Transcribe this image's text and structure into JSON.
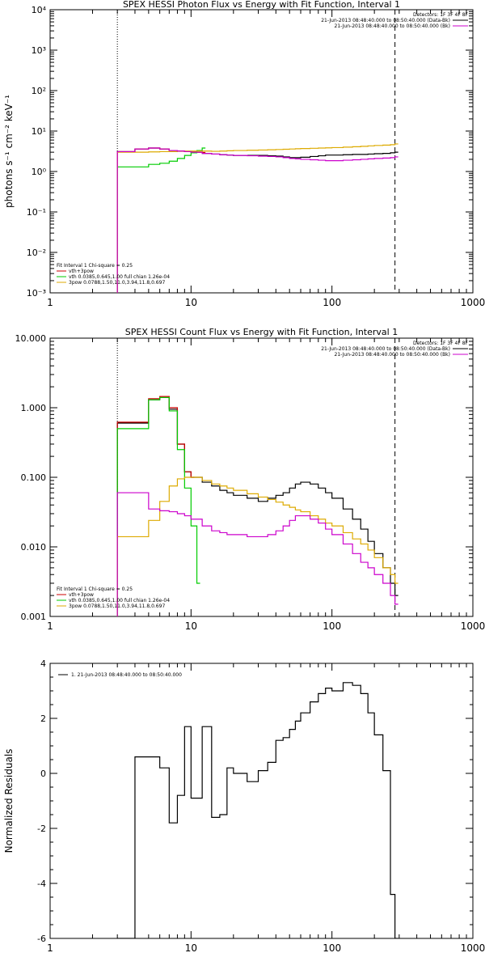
{
  "chart_data": [
    {
      "type": "line",
      "title": "SPEX HESSI Photon Flux vs Energy with Fit Function, Interval 1",
      "ylabel": "photons s⁻¹ cm⁻² keV⁻¹",
      "xscale": "log",
      "yscale": "log",
      "xlim": [
        1,
        1000
      ],
      "ylim": [
        0.001,
        10000
      ],
      "xticks": [
        1,
        10,
        100,
        1000
      ],
      "xtick_labels": [
        "1",
        "10",
        "100",
        "1000"
      ],
      "yticks": [
        0.001,
        0.01,
        0.1,
        1,
        10,
        100,
        1000,
        10000
      ],
      "ytick_labels": [
        "10⁻³",
        "10⁻²",
        "10⁻¹",
        "10⁰",
        "10¹",
        "10²",
        "10³",
        "10⁴"
      ],
      "vlines": [
        {
          "x": 3,
          "style": "dotted"
        },
        {
          "x": 280,
          "style": "dashed"
        }
      ],
      "legend_top": {
        "placement": "top-right",
        "lines": [
          {
            "text": "Detectors: 1F 3F 4F 8F",
            "color": "#000000"
          },
          {
            "text": "21-Jun-2013 08:48:40.000 to 08:50:40.000 (Data-Bk)",
            "color": "#000000"
          },
          {
            "text": "21-Jun-2013 08:48:40.000 to 08:50:40.000 (Bk)",
            "color": "#cc00cc"
          }
        ]
      },
      "legend_bottom": {
        "placement": "bottom-left",
        "lines": [
          {
            "text": "Fit Interval 1    Chi-square = 0.25",
            "color": "#000000"
          },
          {
            "text": "vth+3pow",
            "color": "#cc0000"
          },
          {
            "text": "vth 0.0385,0.645,1.00  full chian 1.26e-04",
            "color": "#00cc00"
          },
          {
            "text": "3pow 0.0788,1.50,11.0,3.94,11.8,0.697",
            "color": "#ddaa00"
          }
        ]
      },
      "series": [
        {
          "color": "#000000",
          "x": [
            3,
            4,
            5,
            6,
            7,
            8,
            9,
            10,
            12,
            14,
            16,
            18,
            20,
            25,
            30,
            35,
            40,
            45,
            50,
            55,
            60,
            70,
            80,
            90,
            100,
            120,
            140,
            160,
            180,
            200,
            230,
            260,
            280
          ],
          "y": [
            3.1,
            3.6,
            3.8,
            3.6,
            3.3,
            3.2,
            3.1,
            3.0,
            2.8,
            2.7,
            2.6,
            2.55,
            2.5,
            2.5,
            2.5,
            2.45,
            2.4,
            2.3,
            2.2,
            2.2,
            2.25,
            2.35,
            2.45,
            2.55,
            2.55,
            2.6,
            2.65,
            2.65,
            2.7,
            2.75,
            2.8,
            2.9,
            3.0
          ]
        },
        {
          "color": "#cc0000",
          "x": [
            3,
            4,
            5,
            6,
            7,
            8,
            9,
            10,
            11,
            12
          ],
          "y": [
            3.1,
            3.6,
            3.8,
            3.6,
            3.3,
            3.2,
            3.1,
            3.05,
            3.0,
            2.95
          ]
        },
        {
          "color": "#00cc00",
          "x": [
            3,
            4,
            5,
            6,
            7,
            8,
            9,
            10,
            11,
            12
          ],
          "y": [
            1.3,
            1.3,
            1.5,
            1.6,
            1.8,
            2.1,
            2.5,
            2.9,
            3.3,
            3.8
          ]
        },
        {
          "color": "#ddaa00",
          "x": [
            3,
            4,
            5,
            6,
            7,
            8,
            9,
            10,
            12,
            14,
            16,
            18,
            20,
            25,
            30,
            35,
            40,
            45,
            50,
            55,
            60,
            70,
            80,
            90,
            100,
            120,
            140,
            160,
            180,
            200,
            230,
            260,
            280
          ],
          "y": [
            3.0,
            3.0,
            3.05,
            3.1,
            3.1,
            3.15,
            3.2,
            3.2,
            3.2,
            3.15,
            3.2,
            3.25,
            3.3,
            3.35,
            3.4,
            3.45,
            3.5,
            3.55,
            3.6,
            3.65,
            3.7,
            3.75,
            3.8,
            3.85,
            3.9,
            4.0,
            4.1,
            4.2,
            4.3,
            4.4,
            4.5,
            4.6,
            4.8
          ]
        },
        {
          "color": "#cc00cc",
          "x": [
            3,
            4,
            5,
            6,
            7,
            8,
            9,
            10,
            12,
            14,
            16,
            18,
            20,
            25,
            30,
            35,
            40,
            45,
            50,
            55,
            60,
            70,
            80,
            90,
            100,
            120,
            140,
            160,
            180,
            200,
            230,
            260,
            280
          ],
          "y": [
            3.1,
            3.6,
            3.8,
            3.6,
            3.3,
            3.2,
            3.1,
            3.0,
            2.8,
            2.7,
            2.6,
            2.55,
            2.5,
            2.45,
            2.4,
            2.35,
            2.3,
            2.2,
            2.1,
            2.05,
            2.0,
            1.95,
            1.9,
            1.85,
            1.85,
            1.9,
            1.95,
            2.0,
            2.05,
            2.1,
            2.15,
            2.2,
            2.3
          ]
        }
      ]
    },
    {
      "type": "line",
      "title": "SPEX HESSI Count Flux vs Energy with Fit Function, Interval 1",
      "ylabel": "",
      "xscale": "log",
      "yscale": "log",
      "xlim": [
        1,
        1000
      ],
      "ylim": [
        0.001,
        10
      ],
      "xticks": [
        1,
        10,
        100,
        1000
      ],
      "xtick_labels": [
        "1",
        "10",
        "100",
        "1000"
      ],
      "yticks": [
        0.001,
        0.01,
        0.1,
        1,
        10
      ],
      "ytick_labels": [
        "0.001",
        "0.010",
        "0.100",
        "1.000",
        "10.000"
      ],
      "vlines": [
        {
          "x": 3,
          "style": "dotted"
        },
        {
          "x": 280,
          "style": "dashed"
        }
      ],
      "legend_top": {
        "placement": "top-right",
        "lines": [
          {
            "text": "Detectors: 1F 3F 4F 8F",
            "color": "#000000"
          },
          {
            "text": "21-Jun-2013 08:48:40.000 to 08:50:40.000 (Data-Bk)",
            "color": "#000000"
          },
          {
            "text": "21-Jun-2013 08:48:40.000 to 08:50:40.000 (Bk)",
            "color": "#cc00cc"
          }
        ]
      },
      "legend_bottom": {
        "placement": "bottom-left",
        "lines": [
          {
            "text": "Fit Interval 1    Chi-square = 0.25",
            "color": "#000000"
          },
          {
            "text": "vth+3pow",
            "color": "#cc0000"
          },
          {
            "text": "vth 0.0385,0.645,1.00  full chian 1.26e-04",
            "color": "#00cc00"
          },
          {
            "text": "3pow 0.0788,1.50,11.0,3.94,11.8,0.697",
            "color": "#ddaa00"
          }
        ]
      },
      "series": [
        {
          "color": "#000000",
          "x": [
            3,
            4,
            5,
            6,
            7,
            8,
            9,
            10,
            12,
            14,
            16,
            18,
            20,
            25,
            30,
            35,
            40,
            45,
            50,
            55,
            60,
            70,
            80,
            90,
            100,
            120,
            140,
            160,
            180,
            200,
            230,
            260,
            280
          ],
          "y": [
            0.6,
            0.6,
            1.3,
            1.4,
            0.95,
            0.3,
            0.12,
            0.1,
            0.085,
            0.075,
            0.065,
            0.06,
            0.055,
            0.05,
            0.045,
            0.05,
            0.055,
            0.06,
            0.07,
            0.08,
            0.085,
            0.08,
            0.07,
            0.06,
            0.05,
            0.035,
            0.025,
            0.018,
            0.012,
            0.008,
            0.005,
            0.003,
            0.002
          ]
        },
        {
          "color": "#cc0000",
          "x": [
            3,
            4,
            5,
            6,
            7,
            8,
            9,
            10
          ],
          "y": [
            0.62,
            0.62,
            1.35,
            1.45,
            1.0,
            0.3,
            0.12,
            0.1
          ]
        },
        {
          "color": "#00cc00",
          "x": [
            3,
            4,
            5,
            6,
            7,
            8,
            9,
            10,
            11
          ],
          "y": [
            0.5,
            0.5,
            1.3,
            1.4,
            0.9,
            0.25,
            0.07,
            0.02,
            0.003
          ]
        },
        {
          "color": "#ddaa00",
          "x": [
            3,
            4,
            5,
            6,
            7,
            8,
            9,
            10,
            12,
            14,
            16,
            18,
            20,
            25,
            30,
            35,
            40,
            45,
            50,
            55,
            60,
            70,
            80,
            90,
            100,
            120,
            140,
            160,
            180,
            200,
            230,
            260,
            280
          ],
          "y": [
            0.014,
            0.014,
            0.024,
            0.045,
            0.075,
            0.095,
            0.1,
            0.1,
            0.09,
            0.08,
            0.075,
            0.07,
            0.065,
            0.058,
            0.052,
            0.048,
            0.044,
            0.04,
            0.037,
            0.034,
            0.032,
            0.028,
            0.025,
            0.022,
            0.02,
            0.016,
            0.013,
            0.011,
            0.009,
            0.007,
            0.005,
            0.004,
            0.003
          ]
        },
        {
          "color": "#cc00cc",
          "x": [
            3,
            4,
            5,
            6,
            7,
            8,
            9,
            10,
            12,
            14,
            16,
            18,
            20,
            25,
            30,
            35,
            40,
            45,
            50,
            55,
            60,
            70,
            80,
            90,
            100,
            120,
            140,
            160,
            180,
            200,
            230,
            260,
            280
          ],
          "y": [
            0.06,
            0.06,
            0.035,
            0.033,
            0.032,
            0.03,
            0.028,
            0.025,
            0.02,
            0.017,
            0.016,
            0.015,
            0.015,
            0.014,
            0.014,
            0.015,
            0.017,
            0.02,
            0.024,
            0.028,
            0.028,
            0.025,
            0.022,
            0.018,
            0.015,
            0.011,
            0.008,
            0.006,
            0.005,
            0.004,
            0.003,
            0.002,
            0.0015
          ]
        }
      ]
    },
    {
      "type": "line",
      "title": "",
      "ylabel": "Normalized Residuals",
      "xscale": "log",
      "yscale": "linear",
      "xlim": [
        1,
        1000
      ],
      "ylim": [
        -6,
        4
      ],
      "xticks": [
        1,
        10,
        100,
        1000
      ],
      "xtick_labels": [
        "1",
        "10",
        "100",
        "1000"
      ],
      "yticks": [
        -6,
        -4,
        -2,
        0,
        2,
        4
      ],
      "ytick_labels": [
        "-6",
        "-4",
        "-2",
        "0",
        "2",
        "4"
      ],
      "vlines": [],
      "legend_top": {
        "placement": "top-left",
        "lines": [
          {
            "text": "1. 21-Jun-2013 08:48:40.000 to 08:50:40.000",
            "color": "#000000"
          }
        ]
      },
      "legend_bottom": {
        "placement": "bottom-left",
        "lines": []
      },
      "series": [
        {
          "color": "#000000",
          "x": [
            3,
            4,
            5,
            6,
            7,
            8,
            9,
            10,
            12,
            14,
            16,
            18,
            20,
            25,
            30,
            35,
            40,
            45,
            50,
            55,
            60,
            70,
            80,
            90,
            100,
            120,
            140,
            160,
            180,
            200,
            230,
            260,
            280
          ],
          "y": [
            -6,
            0.6,
            0.6,
            0.2,
            -1.8,
            -0.8,
            1.7,
            -0.9,
            1.7,
            -1.6,
            -1.5,
            0.2,
            0.0,
            -0.3,
            0.1,
            0.4,
            1.2,
            1.3,
            1.6,
            1.9,
            2.2,
            2.6,
            2.9,
            3.1,
            3.0,
            3.3,
            3.2,
            2.9,
            2.2,
            1.4,
            0.1,
            -4.4,
            -6
          ]
        }
      ]
    }
  ]
}
